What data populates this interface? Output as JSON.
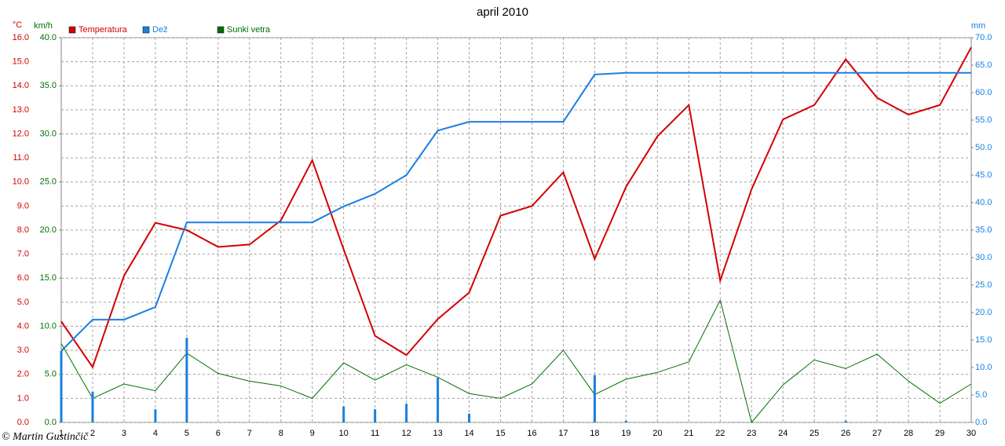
{
  "chart_data": {
    "type": "line",
    "title": "april 2010",
    "ylabel": "°C",
    "y3label": "km/h",
    "y2label": "mm",
    "credit": "© Martin Gustinčič",
    "categories": [
      "1",
      "2",
      "3",
      "4",
      "5",
      "6",
      "7",
      "8",
      "9",
      "10",
      "11",
      "12",
      "13",
      "14",
      "15",
      "16",
      "17",
      "18",
      "19",
      "20",
      "21",
      "22",
      "23",
      "24",
      "25",
      "26",
      "27",
      "28",
      "29",
      "30"
    ],
    "ylim": [
      0,
      16
    ],
    "yticks": [
      {
        "value": 0,
        "label": "0.0"
      },
      {
        "value": 1,
        "label": "1.0"
      },
      {
        "value": 2,
        "label": "2.0"
      },
      {
        "value": 3,
        "label": "3.0"
      },
      {
        "value": 4,
        "label": "4.0"
      },
      {
        "value": 5,
        "label": "5.0"
      },
      {
        "value": 6,
        "label": "6.0"
      },
      {
        "value": 7,
        "label": "7.0"
      },
      {
        "value": 8,
        "label": "8.0"
      },
      {
        "value": 9,
        "label": "9.0"
      },
      {
        "value": 10,
        "label": "10.0"
      },
      {
        "value": 11,
        "label": "11.0"
      },
      {
        "value": 12,
        "label": "12.0"
      },
      {
        "value": 13,
        "label": "13.0"
      },
      {
        "value": 14,
        "label": "14.0"
      },
      {
        "value": 15,
        "label": "15.0"
      },
      {
        "value": 16,
        "label": "16.0"
      }
    ],
    "y3lim": [
      0,
      40
    ],
    "y3ticks": [
      {
        "value": 0,
        "label": "0.0"
      },
      {
        "value": 5,
        "label": "5.0"
      },
      {
        "value": 10,
        "label": "10.0"
      },
      {
        "value": 15,
        "label": "15.0"
      },
      {
        "value": 20,
        "label": "20.0"
      },
      {
        "value": 25,
        "label": "25.0"
      },
      {
        "value": 30,
        "label": "30.0"
      },
      {
        "value": 35,
        "label": "35.0"
      },
      {
        "value": 40,
        "label": "40.0"
      }
    ],
    "y2lim": [
      0,
      70
    ],
    "y2ticks": [
      {
        "value": 0,
        "label": "0.0"
      },
      {
        "value": 5,
        "label": "5.0"
      },
      {
        "value": 10,
        "label": "10.0"
      },
      {
        "value": 15,
        "label": "15.0"
      },
      {
        "value": 20,
        "label": "20.0"
      },
      {
        "value": 25,
        "label": "25.0"
      },
      {
        "value": 30,
        "label": "30.0"
      },
      {
        "value": 35,
        "label": "35.0"
      },
      {
        "value": 40,
        "label": "40.0"
      },
      {
        "value": 45,
        "label": "45.0"
      },
      {
        "value": 50,
        "label": "50.0"
      },
      {
        "value": 55,
        "label": "55.0"
      },
      {
        "value": 60,
        "label": "60.0"
      },
      {
        "value": 65,
        "label": "65.0"
      },
      {
        "value": 70,
        "label": "70.0"
      }
    ],
    "grid": true,
    "series": [
      {
        "name": "Temperatura",
        "color": "#d40000",
        "axis": "y",
        "style": "line",
        "values": [
          4.2,
          2.3,
          6.1,
          8.3,
          8.0,
          7.3,
          7.4,
          8.4,
          10.9,
          7.2,
          3.6,
          2.8,
          4.3,
          5.4,
          8.6,
          9.0,
          10.4,
          6.8,
          9.8,
          11.9,
          13.2,
          5.9,
          9.7,
          12.6,
          13.2,
          15.1,
          13.5,
          12.8,
          13.2,
          15.6
        ]
      },
      {
        "name": "Dež",
        "color": "#1a7fe0",
        "axis": "y2",
        "style": "line",
        "values": [
          13.0,
          18.7,
          18.7,
          21.0,
          36.4,
          36.4,
          36.4,
          36.4,
          36.4,
          39.3,
          41.6,
          45.0,
          53.1,
          54.7,
          54.7,
          54.7,
          54.7,
          63.3,
          63.6,
          63.6,
          63.6,
          63.6,
          63.6,
          63.6,
          63.6,
          63.6,
          63.6,
          63.6,
          63.6,
          63.6
        ]
      },
      {
        "name": "Sunki vetra",
        "color": "#007000",
        "axis": "y3",
        "style": "thin",
        "values": [
          8.2,
          2.5,
          4.0,
          3.3,
          7.2,
          5.1,
          4.3,
          3.8,
          2.5,
          6.2,
          4.4,
          6.0,
          4.7,
          3.0,
          2.5,
          4.0,
          7.5,
          2.9,
          4.5,
          5.2,
          6.3,
          12.7,
          0,
          3.9,
          6.5,
          5.6,
          7.1,
          4.3,
          2.0,
          4.0
        ]
      },
      {
        "color": "#1a7fe0",
        "axis": "y2",
        "style": "bar",
        "values": [
          13.0,
          5.6,
          0,
          2.4,
          15.4,
          0,
          0,
          0,
          0,
          2.9,
          2.4,
          3.4,
          8.1,
          1.6,
          0,
          0,
          0,
          8.6,
          0.3,
          0,
          0,
          0,
          0,
          0,
          0,
          0.3,
          0,
          0,
          0,
          0
        ]
      }
    ]
  }
}
